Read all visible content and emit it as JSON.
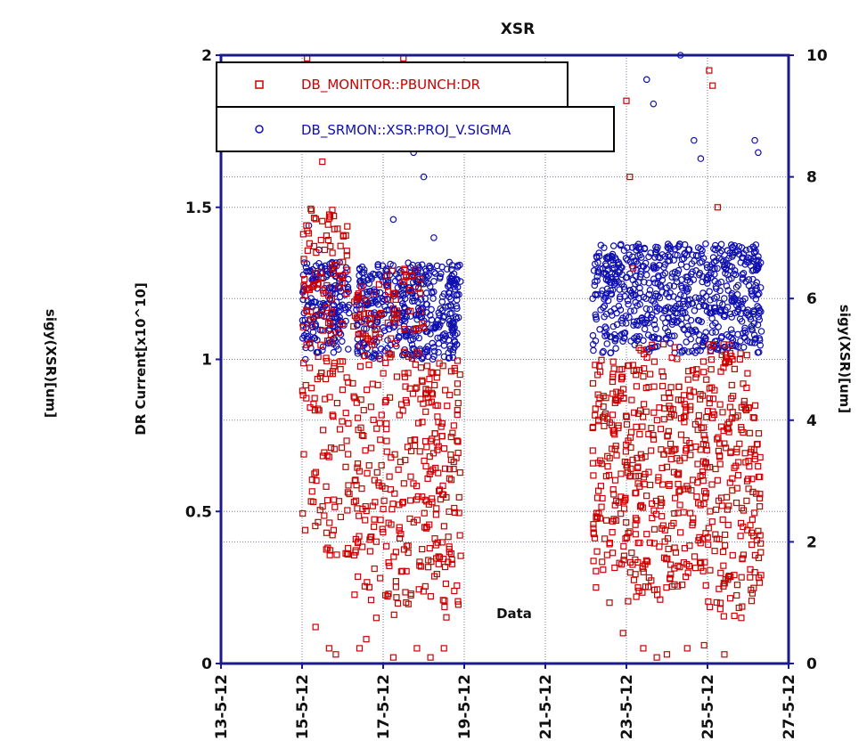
{
  "chart_data": {
    "type": "scatter",
    "title": "XSR",
    "xlabel": "Data",
    "ylabel_left": "DR Current[x10^10]",
    "ylabel_right": "sigy(XSR)[um]",
    "ylabel_far_left": "sigy(XSR)[um]",
    "x_ticks": [
      "13-5-12",
      "15-5-12",
      "17-5-12",
      "19-5-12",
      "21-5-12",
      "23-5-12",
      "25-5-12",
      "27-5-12"
    ],
    "y_left_ticks": [
      "0",
      "0.5",
      "1",
      "1.5",
      "2"
    ],
    "y_right_ticks": [
      "0",
      "2",
      "4",
      "6",
      "8",
      "10"
    ],
    "y_left_range": [
      0,
      2
    ],
    "y_right_range": [
      0,
      10
    ],
    "x_range_days": [
      "13-5-12",
      "27-5-12"
    ],
    "grid": true,
    "legend_position": "top-left",
    "colors": {
      "red": "#cc0000",
      "blue": "#1010b0",
      "axis": "#1a1a8c",
      "grid": "#7a7a9a"
    },
    "series": [
      {
        "name": "DB_MONITOR::PBUNCH:DR",
        "marker": "square",
        "axis": "left",
        "color": "#cc0000",
        "segments": [
          {
            "start": "15-5-12 00:00",
            "end": "16-5-12 04:00",
            "low": 0.35,
            "high": 1.5,
            "points": [
              [
                "15-5-12 03:00",
                1.99
              ],
              [
                "15-5-12 06:00",
                1.75
              ],
              [
                "15-5-12 12:00",
                1.65
              ],
              [
                "15-5-12 18:00",
                1.35
              ],
              [
                "16-5-12 00:00",
                0.9
              ],
              [
                "15-5-12 08:00",
                0.12
              ],
              [
                "15-5-12 16:00",
                0.05
              ],
              [
                "15-5-12 20:00",
                0.03
              ]
            ]
          },
          {
            "start": "16-5-12 06:00",
            "end": "17-5-12 00:00",
            "low": 0.2,
            "high": 1.25,
            "points": [
              [
                "16-5-12 10:00",
                0.05
              ],
              [
                "16-5-12 14:00",
                0.08
              ],
              [
                "16-5-12 20:00",
                0.15
              ]
            ]
          },
          {
            "start": "17-5-12 00:00",
            "end": "18-5-12 00:00",
            "low": 0.15,
            "high": 1.3,
            "points": [
              [
                "17-5-12 12:00",
                1.99
              ],
              [
                "17-5-12 16:00",
                1.75
              ],
              [
                "17-5-12 06:00",
                0.02
              ],
              [
                "17-5-12 20:00",
                0.05
              ]
            ]
          },
          {
            "start": "18-5-12 00:00",
            "end": "18-5-12 22:00",
            "low": 0.15,
            "high": 1.0,
            "points": [
              [
                "18-5-12 04:00",
                0.02
              ],
              [
                "18-5-12 12:00",
                0.05
              ],
              [
                "18-5-12 20:00",
                0.92
              ]
            ]
          },
          {
            "start": "22-5-12 04:00",
            "end": "23-5-12 00:00",
            "low": 0.3,
            "high": 1.0,
            "points": [
              [
                "22-5-12 06:00",
                0.25
              ],
              [
                "22-5-12 14:00",
                0.2
              ],
              [
                "22-5-12 22:00",
                0.1
              ]
            ]
          },
          {
            "start": "23-5-12 00:00",
            "end": "24-5-12 06:00",
            "low": 0.2,
            "high": 1.05,
            "points": [
              [
                "23-5-12 00:00",
                1.85
              ],
              [
                "23-5-12 02:00",
                1.6
              ],
              [
                "23-5-12 04:00",
                1.3
              ],
              [
                "23-5-12 10:00",
                0.05
              ],
              [
                "23-5-12 18:00",
                0.02
              ],
              [
                "24-5-12 00:00",
                0.03
              ]
            ]
          },
          {
            "start": "24-5-12 06:00",
            "end": "25-5-12 00:00",
            "low": 0.25,
            "high": 1.0,
            "points": [
              [
                "24-5-12 12:00",
                0.05
              ],
              [
                "24-5-12 22:00",
                0.06
              ]
            ]
          },
          {
            "start": "25-5-12 00:00",
            "end": "26-5-12 00:00",
            "low": 0.15,
            "high": 1.05,
            "points": [
              [
                "25-5-12 01:00",
                1.95
              ],
              [
                "25-5-12 03:00",
                1.9
              ],
              [
                "25-5-12 06:00",
                1.5
              ],
              [
                "25-5-12 10:00",
                0.03
              ],
              [
                "25-5-12 20:00",
                0.15
              ]
            ]
          },
          {
            "start": "26-5-12 00:00",
            "end": "26-5-12 08:00",
            "low": 0.2,
            "high": 0.85,
            "points": [
              [
                "26-5-12 04:00",
                0.3
              ]
            ]
          }
        ]
      },
      {
        "name": "DB_SRMON::XSR:PROJ_V.SIGMA",
        "marker": "circle",
        "axis": "right",
        "color": "#1010b0",
        "segments": [
          {
            "start": "15-5-12 00:00",
            "end": "16-5-12 04:00",
            "low": 5.1,
            "high": 6.6,
            "points": [
              [
                "15-5-12 02:00",
                5.0
              ],
              [
                "15-5-12 04:00",
                7.2
              ],
              [
                "15-5-12 10:00",
                6.8
              ]
            ]
          },
          {
            "start": "16-5-12 08:00",
            "end": "18-5-12 22:00",
            "low": 5.0,
            "high": 6.6,
            "points": [
              [
                "17-5-12 06:00",
                7.3
              ],
              [
                "17-5-12 18:00",
                8.4
              ],
              [
                "18-5-12 00:00",
                8.0
              ],
              [
                "18-5-12 06:00",
                7.0
              ]
            ]
          },
          {
            "start": "22-5-12 04:00",
            "end": "26-5-12 08:00",
            "low": 5.1,
            "high": 6.9,
            "points": [
              [
                "23-5-12 12:00",
                9.6
              ],
              [
                "23-5-12 16:00",
                9.2
              ],
              [
                "24-5-12 08:00",
                10.0
              ],
              [
                "24-5-12 16:00",
                8.6
              ],
              [
                "24-5-12 20:00",
                8.3
              ],
              [
                "26-5-12 04:00",
                8.6
              ],
              [
                "26-5-12 06:00",
                8.4
              ]
            ]
          }
        ]
      }
    ]
  }
}
